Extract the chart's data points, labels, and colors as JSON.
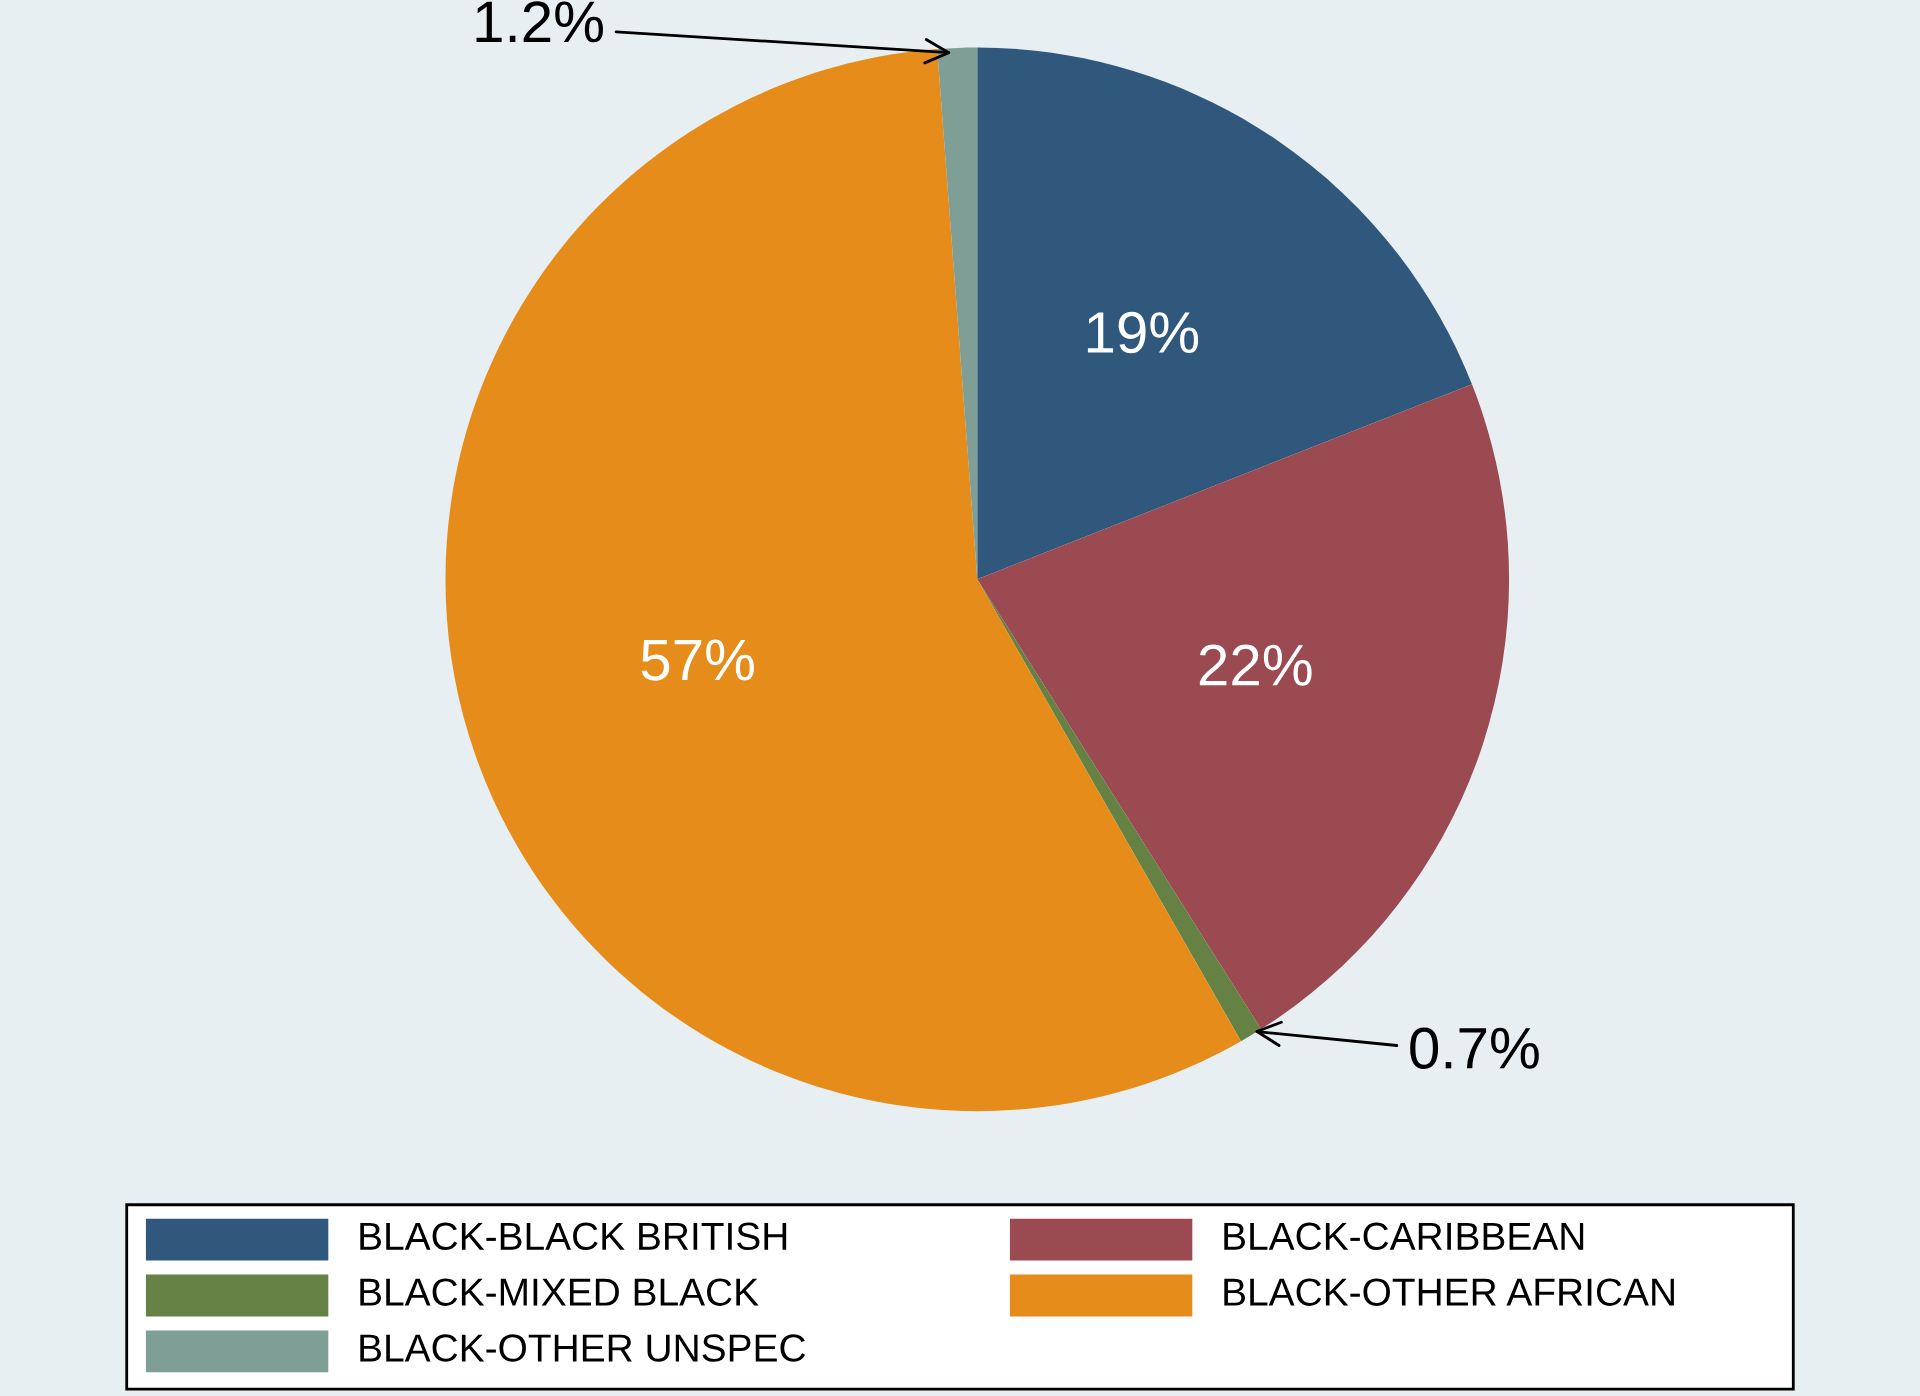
{
  "chart_data": {
    "type": "pie",
    "categories": [
      "BLACK-BLACK BRITISH",
      "BLACK-CARIBBEAN",
      "BLACK-MIXED BLACK",
      "BLACK-OTHER AFRICAN",
      "BLACK-OTHER UNSPEC"
    ],
    "values": [
      19,
      22,
      0.7,
      57,
      1.2
    ],
    "colors": [
      "#30587c",
      "#9b4a51",
      "#668144",
      "#e68c1a",
      "#7f9f96"
    ],
    "value_labels": [
      "19%",
      "22%",
      "0.7%",
      "57%",
      "1.2%"
    ],
    "legend": "bottom"
  }
}
